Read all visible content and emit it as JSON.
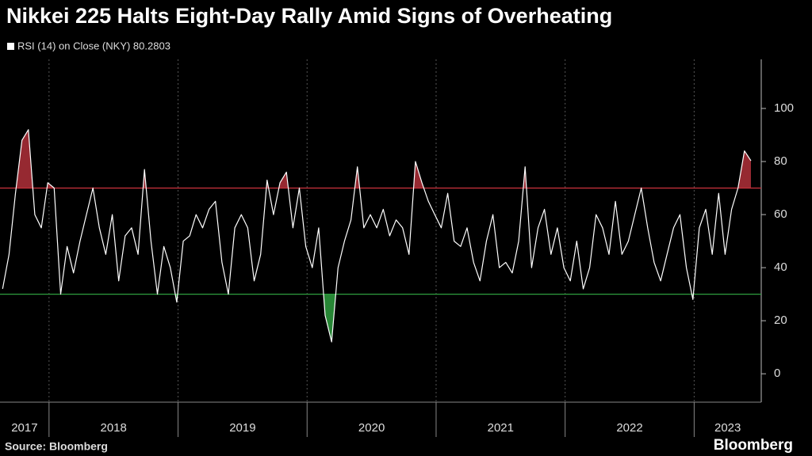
{
  "chart_data": {
    "type": "line",
    "title": "Nikkei 225 Halts Eight-Day Rally Amid Signs of Overheating",
    "legend_label": "RSI (14)  on Close (NKY) 80.2803",
    "source": "Source: Bloomberg",
    "brand": "Bloomberg",
    "xlim": [
      2017.62,
      2023.52
    ],
    "xticks": [
      2017,
      2018,
      2019,
      2020,
      2021,
      2022,
      2023
    ],
    "ylim": [
      -10.7,
      118.5
    ],
    "yticks": [
      0,
      20,
      40,
      60,
      80,
      100
    ],
    "grid": true,
    "hlines": [
      {
        "value": 70,
        "color": "#c0303a"
      },
      {
        "value": 30,
        "color": "#2e9e3e"
      }
    ],
    "series": [
      {
        "name": "RSI (14)",
        "color": "#ffffff",
        "x": [
          2017.64,
          2017.69,
          2017.74,
          2017.79,
          2017.84,
          2017.89,
          2017.94,
          2017.99,
          2018.04,
          2018.09,
          2018.14,
          2018.19,
          2018.24,
          2018.29,
          2018.34,
          2018.39,
          2018.44,
          2018.49,
          2018.54,
          2018.59,
          2018.64,
          2018.69,
          2018.74,
          2018.79,
          2018.84,
          2018.89,
          2018.94,
          2018.99,
          2019.04,
          2019.09,
          2019.14,
          2019.19,
          2019.24,
          2019.29,
          2019.34,
          2019.39,
          2019.44,
          2019.49,
          2019.54,
          2019.59,
          2019.64,
          2019.69,
          2019.74,
          2019.79,
          2019.84,
          2019.89,
          2019.94,
          2019.99,
          2020.04,
          2020.09,
          2020.14,
          2020.19,
          2020.24,
          2020.29,
          2020.34,
          2020.39,
          2020.44,
          2020.49,
          2020.54,
          2020.59,
          2020.64,
          2020.69,
          2020.74,
          2020.79,
          2020.84,
          2020.89,
          2020.94,
          2020.99,
          2021.04,
          2021.09,
          2021.14,
          2021.19,
          2021.24,
          2021.29,
          2021.34,
          2021.39,
          2021.44,
          2021.49,
          2021.54,
          2021.59,
          2021.64,
          2021.69,
          2021.74,
          2021.79,
          2021.84,
          2021.89,
          2021.94,
          2021.99,
          2022.04,
          2022.09,
          2022.14,
          2022.19,
          2022.24,
          2022.29,
          2022.34,
          2022.39,
          2022.44,
          2022.49,
          2022.54,
          2022.59,
          2022.64,
          2022.69,
          2022.74,
          2022.79,
          2022.84,
          2022.89,
          2022.94,
          2022.99,
          2023.04,
          2023.09,
          2023.14,
          2023.19,
          2023.24,
          2023.29,
          2023.34,
          2023.39,
          2023.44
        ],
        "values": [
          32,
          45,
          68,
          88,
          92,
          60,
          55,
          72,
          70,
          30,
          48,
          38,
          50,
          60,
          70,
          55,
          45,
          60,
          35,
          52,
          55,
          45,
          77,
          50,
          30,
          48,
          40,
          27,
          50,
          52,
          60,
          55,
          62,
          65,
          42,
          30,
          55,
          60,
          55,
          35,
          45,
          73,
          60,
          72,
          76,
          55,
          70,
          48,
          40,
          55,
          22,
          12,
          40,
          50,
          58,
          78,
          55,
          60,
          55,
          62,
          52,
          58,
          55,
          45,
          80,
          72,
          65,
          60,
          55,
          68,
          50,
          48,
          55,
          42,
          35,
          50,
          60,
          40,
          42,
          38,
          50,
          78,
          40,
          55,
          62,
          45,
          55,
          40,
          35,
          50,
          32,
          40,
          60,
          55,
          45,
          65,
          45,
          50,
          60,
          70,
          55,
          42,
          35,
          45,
          55,
          60,
          40,
          28,
          55,
          62,
          45,
          68,
          45,
          62,
          70,
          84,
          80.2803
        ]
      }
    ]
  }
}
